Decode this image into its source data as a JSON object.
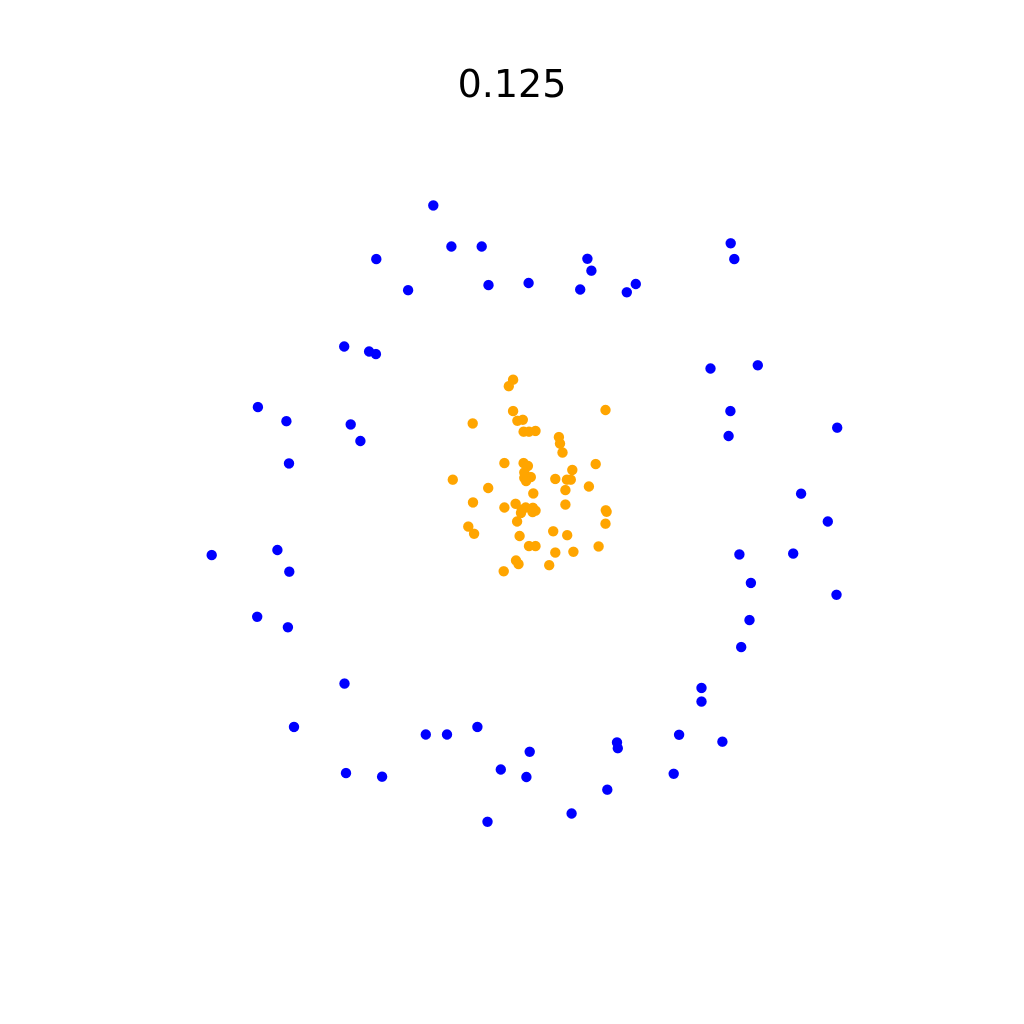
{
  "chart_data": {
    "type": "scatter",
    "title": "0.125",
    "xlabel": "",
    "ylabel": "",
    "axes_visible": false,
    "grid": false,
    "xlim": [
      -1.1,
      1.1
    ],
    "ylim": [
      -1.1,
      1.1
    ],
    "series": [
      {
        "color": "#0000ff",
        "points": [
          [
            -0.254,
            0.869
          ],
          [
            -0.204,
            0.755
          ],
          [
            -0.12,
            0.755
          ],
          [
            -0.412,
            0.72
          ],
          [
            -0.324,
            0.634
          ],
          [
            -0.101,
            0.648
          ],
          [
            0.01,
            0.654
          ],
          [
            0.173,
            0.721
          ],
          [
            0.184,
            0.688
          ],
          [
            0.153,
            0.636
          ],
          [
            0.282,
            0.628
          ],
          [
            0.307,
            0.651
          ],
          [
            0.57,
            0.764
          ],
          [
            0.58,
            0.72
          ],
          [
            -0.501,
            0.478
          ],
          [
            -0.432,
            0.464
          ],
          [
            -0.413,
            0.457
          ],
          [
            0.514,
            0.417
          ],
          [
            0.645,
            0.426
          ],
          [
            0.569,
            0.299
          ],
          [
            0.865,
            0.253
          ],
          [
            -0.74,
            0.31
          ],
          [
            -0.661,
            0.271
          ],
          [
            -0.483,
            0.262
          ],
          [
            -0.456,
            0.216
          ],
          [
            0.564,
            0.23
          ],
          [
            -0.654,
            0.154
          ],
          [
            0.765,
            0.07
          ],
          [
            0.839,
            -0.007
          ],
          [
            -0.868,
            -0.1
          ],
          [
            -0.686,
            -0.086
          ],
          [
            -0.653,
            -0.146
          ],
          [
            0.594,
            -0.098
          ],
          [
            0.743,
            -0.096
          ],
          [
            0.626,
            -0.177
          ],
          [
            0.863,
            -0.21
          ],
          [
            -0.742,
            -0.271
          ],
          [
            -0.657,
            -0.3
          ],
          [
            0.622,
            -0.28
          ],
          [
            0.599,
            -0.355
          ],
          [
            -0.5,
            -0.456
          ],
          [
            0.489,
            -0.468
          ],
          [
            0.489,
            -0.506
          ],
          [
            -0.64,
            -0.576
          ],
          [
            -0.132,
            -0.576
          ],
          [
            -0.275,
            -0.597
          ],
          [
            -0.216,
            -0.597
          ],
          [
            0.427,
            -0.598
          ],
          [
            0.547,
            -0.617
          ],
          [
            0.255,
            -0.619
          ],
          [
            0.257,
            -0.635
          ],
          [
            0.013,
            -0.645
          ],
          [
            -0.067,
            -0.694
          ],
          [
            0.004,
            -0.715
          ],
          [
            -0.496,
            -0.704
          ],
          [
            -0.396,
            -0.714
          ],
          [
            0.228,
            -0.75
          ],
          [
            0.412,
            -0.706
          ],
          [
            -0.104,
            -0.839
          ],
          [
            0.129,
            -0.816
          ]
        ]
      },
      {
        "color": "#ffa500",
        "points": [
          [
            -0.033,
            0.386
          ],
          [
            -0.045,
            0.368
          ],
          [
            -0.033,
            0.299
          ],
          [
            -0.021,
            0.272
          ],
          [
            -0.006,
            0.275
          ],
          [
            -0.004,
            0.242
          ],
          [
            0.029,
            0.244
          ],
          [
            0.011,
            0.242
          ],
          [
            0.094,
            0.227
          ],
          [
            0.097,
            0.209
          ],
          [
            0.104,
            0.184
          ],
          [
            0.196,
            0.152
          ],
          [
            -0.057,
            0.155
          ],
          [
            -0.145,
            0.265
          ],
          [
            0.223,
            0.302
          ],
          [
            -0.004,
            0.155
          ],
          [
            0.008,
            0.147
          ],
          [
            0.131,
            0.136
          ],
          [
            -0.002,
            0.129
          ],
          [
            0.016,
            0.116
          ],
          [
            0.084,
            0.111
          ],
          [
            0.116,
            0.109
          ],
          [
            0.127,
            0.109
          ],
          [
            -0.002,
            0.114
          ],
          [
            0.003,
            0.105
          ],
          [
            -0.2,
            0.109
          ],
          [
            -0.102,
            0.086
          ],
          [
            0.177,
            0.09
          ],
          [
            0.112,
            0.08
          ],
          [
            0.023,
            0.071
          ],
          [
            -0.144,
            0.046
          ],
          [
            -0.026,
            0.042
          ],
          [
            0.112,
            0.04
          ],
          [
            -0.057,
            0.032
          ],
          [
            -0.009,
            0.026
          ],
          [
            0.002,
            0.032
          ],
          [
            0.022,
            0.031
          ],
          [
            0.029,
            0.023
          ],
          [
            -0.011,
            0.017
          ],
          [
            0.224,
            0.024
          ],
          [
            0.226,
            0.02
          ],
          [
            0.021,
            0.019
          ],
          [
            0.223,
            -0.013
          ],
          [
            -0.157,
            -0.021
          ],
          [
            -0.022,
            -0.007
          ],
          [
            -0.141,
            -0.041
          ],
          [
            -0.015,
            -0.047
          ],
          [
            0.078,
            -0.034
          ],
          [
            0.117,
            -0.045
          ],
          [
            0.011,
            -0.075
          ],
          [
            0.029,
            -0.075
          ],
          [
            0.204,
            -0.076
          ],
          [
            0.084,
            -0.093
          ],
          [
            0.134,
            -0.091
          ],
          [
            -0.025,
            -0.115
          ],
          [
            -0.018,
            -0.125
          ],
          [
            0.067,
            -0.128
          ],
          [
            -0.059,
            -0.145
          ]
        ]
      }
    ]
  }
}
